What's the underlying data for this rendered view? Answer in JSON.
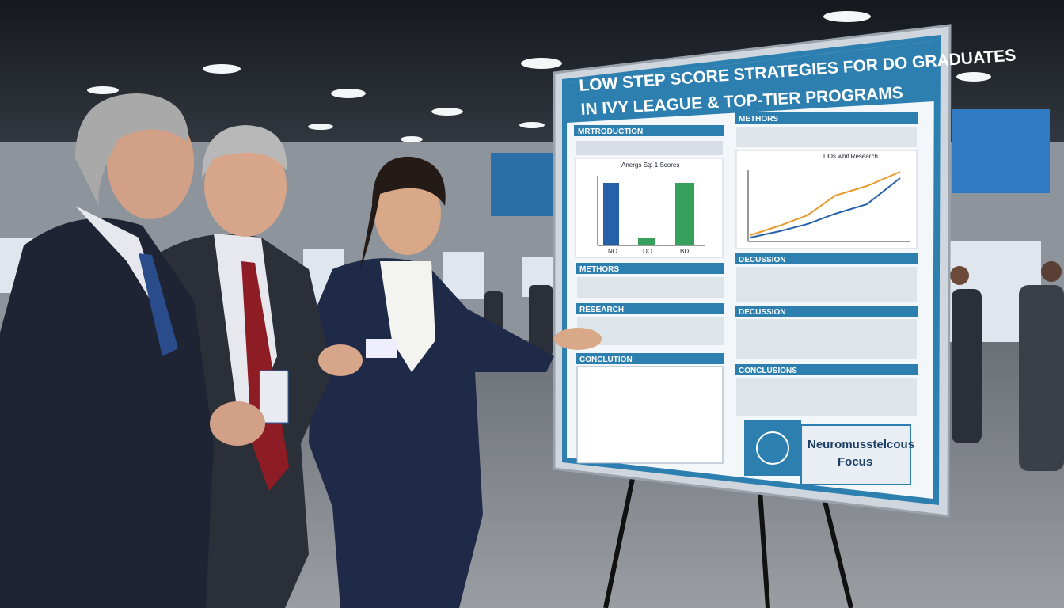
{
  "poster": {
    "title_lines": [
      "LOW STEP SCORE STRATEGIES FOR DO GRADUATES",
      "IN IVY LEAGUE & TOP-TIER PROGRAMS"
    ],
    "left_sections": [
      "MRTRODUCTION",
      "METHORS",
      "RESEARCH",
      "CONCLUTION"
    ],
    "right_sections": [
      "METHORS",
      "DECUSSION",
      "DECUSSION",
      "CONCLUSIONS"
    ],
    "chart_title": "Anergs Stp 1 Scores",
    "bar_labels": [
      "NO",
      "DO",
      "BD"
    ],
    "legend": "DOs whit Research",
    "badge": [
      "Neuromusstelcous",
      "Focus"
    ]
  }
}
